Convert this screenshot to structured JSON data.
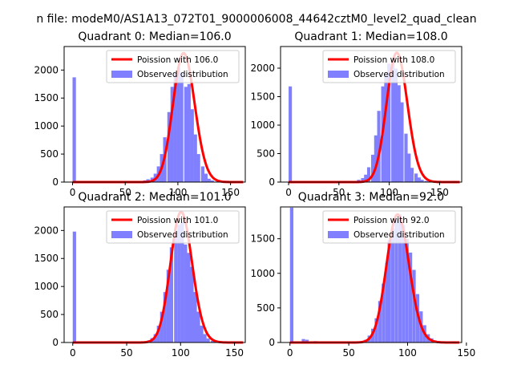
{
  "figure": {
    "suptitle": "n file: modeM0/AS1A13_072T01_9000006008_44642cztM0_level2_quad_clean"
  },
  "colors": {
    "observed": "#8080ff",
    "poisson": "#ff0000"
  },
  "chart_data": [
    {
      "type": "bar",
      "title": "Quadrant 0: Median=106.0",
      "median": 106.0,
      "xlim": [
        -8,
        164
      ],
      "ylim": [
        0,
        2420
      ],
      "xticks": [
        0,
        50,
        100,
        150
      ],
      "yticks": [
        0,
        500,
        1000,
        1500,
        2000
      ],
      "bin_width": 3.2,
      "spike": {
        "x": 0,
        "value": 1870
      },
      "series": [
        {
          "name": "Poission with 106.0",
          "kind": "poisson",
          "mean": 106.0,
          "peak": 2300
        },
        {
          "name": "Observed distribution",
          "kind": "histogram",
          "x": [
            67,
            70,
            74,
            77,
            80,
            83,
            86,
            90,
            93,
            96,
            99,
            102,
            106,
            109,
            112,
            115,
            118,
            122,
            125,
            128,
            131
          ],
          "values": [
            30,
            50,
            80,
            150,
            280,
            500,
            800,
            1250,
            1700,
            1950,
            2050,
            1950,
            1700,
            1750,
            1300,
            850,
            500,
            280,
            150,
            60,
            30
          ]
        }
      ],
      "legend_loc": "upper right"
    },
    {
      "type": "bar",
      "title": "Quadrant 1: Median=108.0",
      "median": 108.0,
      "xlim": [
        -8,
        172
      ],
      "ylim": [
        0,
        2380
      ],
      "xticks": [
        0,
        50,
        100,
        150
      ],
      "yticks": [
        0,
        500,
        1000,
        1500,
        2000
      ],
      "bin_width": 3.3,
      "spike": {
        "x": 0,
        "value": 1680
      },
      "series": [
        {
          "name": "Poission with 108.0",
          "kind": "poisson",
          "mean": 108.0,
          "peak": 2270
        },
        {
          "name": "Observed distribution",
          "kind": "histogram",
          "x": [
            65,
            68,
            72,
            75,
            78,
            82,
            85,
            88,
            92,
            95,
            98,
            102,
            105,
            108,
            111,
            115,
            118,
            121,
            125,
            128,
            131,
            135
          ],
          "values": [
            20,
            40,
            70,
            130,
            260,
            480,
            820,
            1250,
            1680,
            1880,
            2080,
            2150,
            1990,
            1700,
            1400,
            850,
            500,
            250,
            150,
            80,
            40,
            20
          ]
        }
      ],
      "legend_loc": "upper right"
    },
    {
      "type": "bar",
      "title": "Quadrant 2: Median=101.0",
      "median": 101.0,
      "xlim": [
        -8,
        160
      ],
      "ylim": [
        0,
        2420
      ],
      "xticks": [
        0,
        50,
        100,
        150
      ],
      "yticks": [
        0,
        500,
        1000,
        1500,
        2000
      ],
      "bin_width": 3.1,
      "spike": {
        "x": 0,
        "value": 1980
      },
      "series": [
        {
          "name": "Poission with 101.0",
          "kind": "poisson",
          "mean": 101.0,
          "peak": 2330
        },
        {
          "name": "Observed distribution",
          "kind": "histogram",
          "x": [
            66,
            69,
            72,
            75,
            78,
            81,
            84,
            87,
            90,
            94,
            97,
            100,
            103,
            106,
            109,
            112,
            115,
            118,
            121,
            124,
            128
          ],
          "values": [
            20,
            40,
            80,
            150,
            300,
            550,
            900,
            1300,
            1700,
            1980,
            2100,
            2150,
            1750,
            1600,
            1350,
            900,
            550,
            300,
            150,
            70,
            30
          ]
        }
      ],
      "legend_loc": "upper right"
    },
    {
      "type": "bar",
      "title": "Quadrant 3: Median=92.0",
      "median": 92.0,
      "xlim": [
        -8,
        146
      ],
      "ylim": [
        0,
        1960
      ],
      "xticks": [
        0,
        50,
        100,
        150
      ],
      "yticks": [
        0,
        500,
        1000,
        1500
      ],
      "bin_width": 2.9,
      "spike": {
        "x": 0,
        "value": 1950
      },
      "small": [
        {
          "x": 10,
          "value": 50
        },
        {
          "x": 13,
          "value": 40
        },
        {
          "x": 20,
          "value": 20
        }
      ],
      "series": [
        {
          "name": "Poission with 92.0",
          "kind": "poisson",
          "mean": 92.0,
          "peak": 1850
        },
        {
          "name": "Observed distribution",
          "kind": "histogram",
          "x": [
            60,
            63,
            66,
            69,
            72,
            75,
            78,
            81,
            83,
            86,
            89,
            92,
            95,
            98,
            101,
            104,
            107,
            110,
            113,
            116,
            119,
            122
          ],
          "values": [
            20,
            40,
            100,
            200,
            350,
            600,
            850,
            1150,
            1480,
            1650,
            1800,
            1850,
            1700,
            1500,
            1300,
            1050,
            700,
            450,
            250,
            120,
            60,
            30
          ]
        }
      ],
      "legend_loc": "upper right"
    }
  ]
}
